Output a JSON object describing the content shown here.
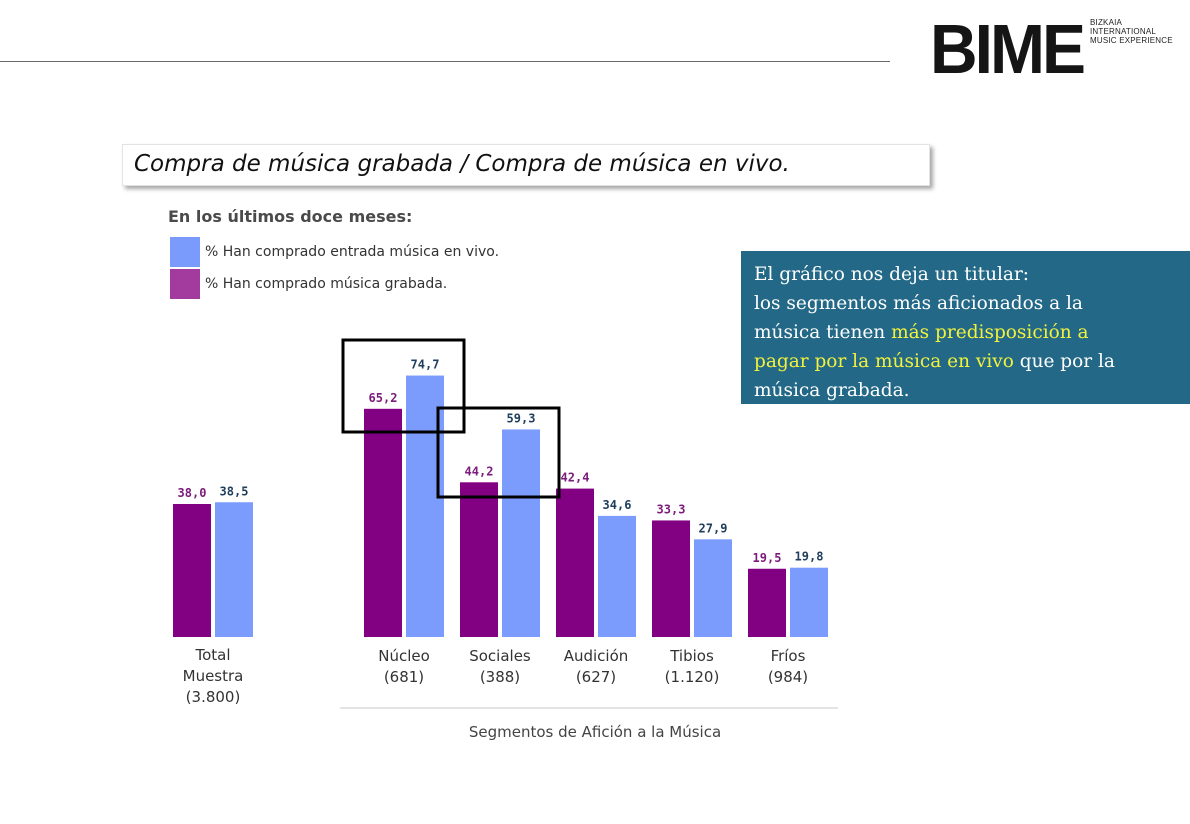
{
  "logo": {
    "mark": "BIME",
    "tagline": [
      "BIZKAIA",
      "INTERNATIONAL",
      "MUSIC EXPERIENCE"
    ]
  },
  "title": "Compra de música grabada / Compra de música en vivo.",
  "subtitle": "En los últimos doce meses:",
  "legend": [
    {
      "label": "% Han comprado entrada música en vivo.",
      "color": "#7a9bfb"
    },
    {
      "label": "% Han comprado música grabada.",
      "color": "#a23b9d"
    }
  ],
  "callout": {
    "line1": "El gráfico nos deja un titular:",
    "line2": "los segmentos más aficionados a la",
    "line3a": "música tienen ",
    "line3b": "más predisposición a",
    "line4a": "pagar por la música en vivo",
    "line4b": " que por la",
    "line5": "música grabada.",
    "highlight_color": "#f2f23c",
    "bg_color": "#236987"
  },
  "chart_data": {
    "type": "bar",
    "categories": [
      [
        "Total",
        "Muestra",
        "(3.800)"
      ],
      [
        "Núcleo",
        "(681)"
      ],
      [
        "Sociales",
        "(388)"
      ],
      [
        "Audición",
        "(627)"
      ],
      [
        "Tibios",
        "(1.120)"
      ],
      [
        "Fríos",
        "(984)"
      ]
    ],
    "series": [
      {
        "name": "% Han comprado música grabada.",
        "color": "#820082",
        "label_color": "#7b1b7b",
        "values": [
          38.0,
          65.2,
          44.2,
          42.4,
          33.3,
          19.5
        ],
        "labels": [
          "38,0",
          "65,2",
          "44,2",
          "42,4",
          "33,3",
          "19,5"
        ]
      },
      {
        "name": "% Han comprado entrada música en vivo.",
        "color": "#7b9cfc",
        "label_color": "#1f3e5c",
        "values": [
          38.5,
          74.7,
          59.3,
          34.6,
          27.9,
          19.8
        ],
        "labels": [
          "38,5",
          "74,7",
          "59,3",
          "34,6",
          "27,9",
          "19,8"
        ]
      }
    ],
    "xlabel": "Segmentos de Afición a la Música",
    "ylabel": "",
    "ylim": [
      0,
      100
    ],
    "grid": false,
    "highlight_boxes": [
      1,
      2
    ]
  }
}
